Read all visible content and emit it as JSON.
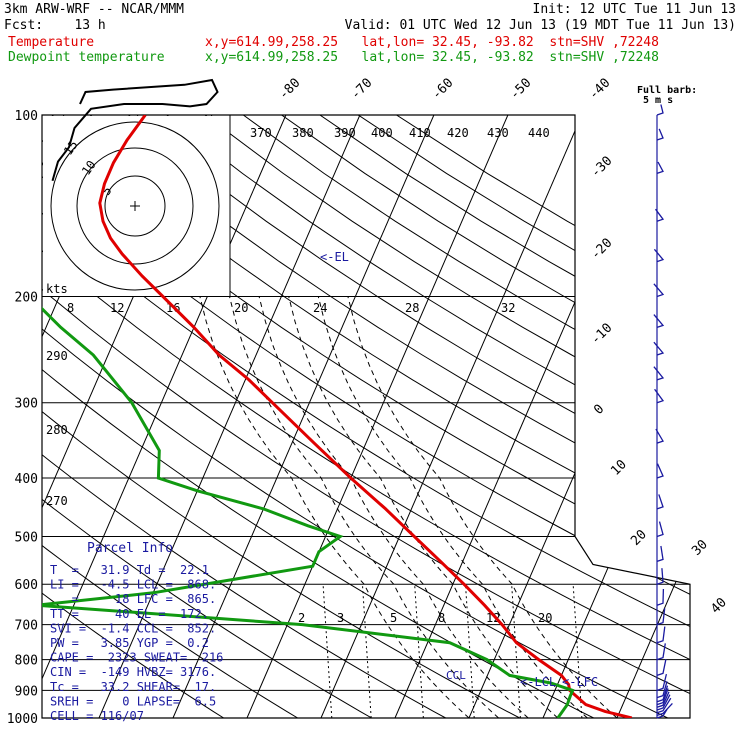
{
  "header": {
    "title": "3km ARW-WRF -- NCAR/MMM",
    "init": "Init: 12 UTC Tue 11 Jun 13",
    "fcst": "Fcst:    13 h",
    "valid": "Valid: 01 UTC Wed 12 Jun 13 (19 MDT Tue 11 Jun 13)",
    "temp_label": "Temperature",
    "temp_info": "x,y=614.99,258.25   lat,lon= 32.45, -93.82  stn=SHV ,72248",
    "dew_label": "Dewpoint temperature",
    "dew_info": "x,y=614.99,258.25   lat,lon= 32.45, -93.82  stn=SHV ,72248"
  },
  "barb_legend": {
    "line1": "Full barb:",
    "line2": "5 m s"
  },
  "hodograph": {
    "units": "kts",
    "ring_labels": [
      "5",
      "10",
      "15"
    ]
  },
  "parcel_info": {
    "title": "Parcel Info",
    "rows": [
      "T  =   31.9 Td =  22.1",
      "LI =   -4.5 LCL =  868.",
      "   =     18 LFC =  865.",
      "TT =     40 EL =  172.",
      "SVI =  -1.4 CCL =  852.",
      "PW =   3.85 YGP =  0.2",
      "CAPE =  2323 SWEAT=  216",
      "CIN =  -149 HVBZ= 3176.",
      "Tc =   33.2 SHEAR=  17.",
      "SREH =    0 LAPSE=  6.5",
      "CELL = 116/07"
    ]
  },
  "annotations": {
    "el": "<-EL",
    "lcl": "<-LCL",
    "lfc": "<-LFC",
    "ccl": "CCL"
  },
  "colors": {
    "temperature": "#e00000",
    "dewpoint": "#119911",
    "barbs": "#1a1aa0",
    "isobar": "#000000"
  },
  "chart_data": {
    "type": "line",
    "chart_kind": "skew-T log-P diagram",
    "y_axis": {
      "scale": "log",
      "ticks": [
        100,
        200,
        300,
        400,
        500,
        600,
        700,
        800,
        900,
        1000
      ],
      "unit": "hPa",
      "range": [
        100,
        1000
      ]
    },
    "isotherm_labels": [
      "-80",
      "-70",
      "-60",
      "-50",
      "-40",
      "-30",
      "-20",
      "-10",
      "0",
      "10",
      "20",
      "30",
      "40"
    ],
    "theta_labels": [
      "370",
      "380",
      "390",
      "400",
      "410",
      "420",
      "430",
      "440"
    ],
    "mixing_ratio_labels_top": [
      "8",
      "12",
      "16",
      "20",
      "24",
      "28",
      "32"
    ],
    "mixing_ratio_labels_bottom": [
      "2",
      "3",
      "5",
      "8",
      "12",
      "20"
    ],
    "theta_labels_left": [
      "290",
      "280",
      "270"
    ],
    "series": [
      {
        "name": "Temperature",
        "points": [
          [
            1000,
            32
          ],
          [
            975,
            28
          ],
          [
            950,
            25
          ],
          [
            900,
            22
          ],
          [
            880,
            21.5
          ],
          [
            850,
            20
          ],
          [
            800,
            16
          ],
          [
            750,
            12
          ],
          [
            700,
            9
          ],
          [
            650,
            5.5
          ],
          [
            600,
            1.5
          ],
          [
            550,
            -3
          ],
          [
            500,
            -8
          ],
          [
            450,
            -13.5
          ],
          [
            400,
            -20
          ],
          [
            350,
            -27
          ],
          [
            300,
            -35
          ],
          [
            275,
            -39.5
          ],
          [
            250,
            -45
          ],
          [
            225,
            -50
          ],
          [
            200,
            -56
          ],
          [
            185,
            -60
          ],
          [
            170,
            -64
          ],
          [
            160,
            -66.5
          ],
          [
            150,
            -68.5
          ],
          [
            140,
            -70
          ],
          [
            130,
            -70.5
          ],
          [
            120,
            -70.5
          ],
          [
            110,
            -70
          ],
          [
            100,
            -69
          ]
        ]
      },
      {
        "name": "Dewpoint temperature",
        "points": [
          [
            1000,
            22
          ],
          [
            950,
            22.5
          ],
          [
            920,
            22.4
          ],
          [
            900,
            22.4
          ],
          [
            875,
            19
          ],
          [
            850,
            13
          ],
          [
            800,
            9
          ],
          [
            750,
            3
          ],
          [
            700,
            -18
          ],
          [
            650,
            -55
          ],
          [
            620,
            -40
          ],
          [
            560,
            -20
          ],
          [
            530,
            -20
          ],
          [
            500,
            -18
          ],
          [
            480,
            -23
          ],
          [
            450,
            -30
          ],
          [
            420,
            -40
          ],
          [
            400,
            -46
          ],
          [
            360,
            -47.5
          ],
          [
            300,
            -54
          ],
          [
            250,
            -62
          ],
          [
            225,
            -68
          ],
          [
            200,
            -74
          ],
          [
            175,
            -79
          ],
          [
            160,
            -82
          ],
          [
            150,
            -86
          ],
          [
            140,
            -90
          ],
          [
            130,
            -91
          ],
          [
            120,
            -93
          ],
          [
            110,
            -95
          ],
          [
            100,
            -97
          ]
        ]
      }
    ],
    "annotation_pressures": {
      "EL": 172,
      "LCL": 868,
      "LFC": 865,
      "CCL": 852
    },
    "wind_barbs": [
      [
        1000,
        0,
        4
      ],
      [
        990,
        90,
        5
      ],
      [
        980,
        135,
        5
      ],
      [
        970,
        150,
        6
      ],
      [
        960,
        160,
        6
      ],
      [
        950,
        170,
        7
      ],
      [
        940,
        175,
        7
      ],
      [
        925,
        180,
        8
      ],
      [
        900,
        185,
        8
      ],
      [
        850,
        190,
        8
      ],
      [
        800,
        195,
        8
      ],
      [
        750,
        200,
        8
      ],
      [
        700,
        200,
        9
      ],
      [
        650,
        210,
        10
      ],
      [
        600,
        220,
        12
      ],
      [
        550,
        230,
        12
      ],
      [
        500,
        240,
        14
      ],
      [
        450,
        245,
        15
      ],
      [
        400,
        250,
        18
      ],
      [
        350,
        255,
        22
      ],
      [
        300,
        260,
        25
      ],
      [
        275,
        262,
        28
      ],
      [
        250,
        265,
        32
      ],
      [
        225,
        265,
        32
      ],
      [
        200,
        265,
        30
      ],
      [
        175,
        268,
        25
      ],
      [
        150,
        270,
        22
      ],
      [
        125,
        275,
        15
      ],
      [
        110,
        280,
        12
      ],
      [
        100,
        290,
        8
      ]
    ],
    "hodograph_points": [
      [
        -15,
        -2
      ],
      [
        -14,
        6
      ],
      [
        -12,
        12
      ],
      [
        -11,
        20
      ],
      [
        -8,
        28
      ],
      [
        -2,
        30
      ],
      [
        5,
        30
      ],
      [
        10,
        29
      ],
      [
        13,
        30
      ],
      [
        15,
        35
      ],
      [
        14,
        40
      ],
      [
        9,
        38
      ],
      [
        -4,
        36
      ],
      [
        -9,
        35
      ],
      [
        -10,
        30
      ]
    ]
  }
}
